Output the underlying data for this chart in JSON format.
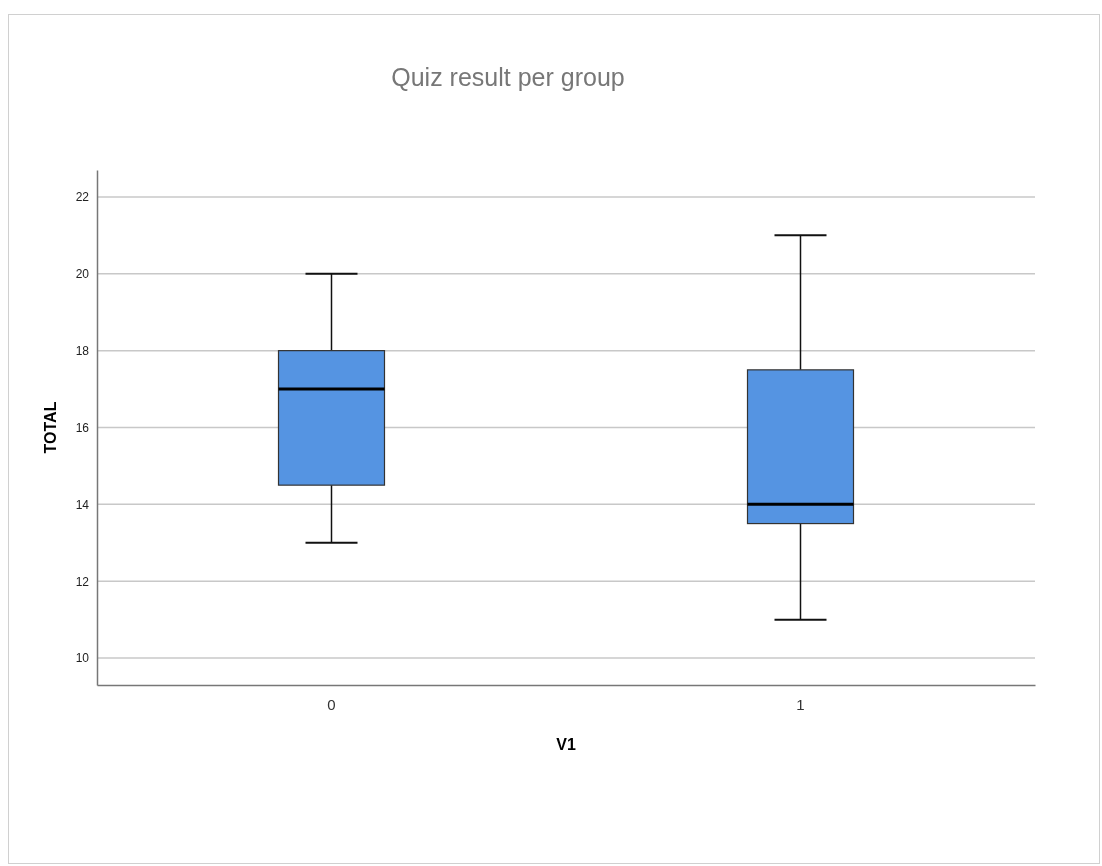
{
  "chart_data": {
    "type": "box",
    "title": "Quiz result per group",
    "xlabel": "V1",
    "ylabel": "TOTAL",
    "categories": [
      "0",
      "1"
    ],
    "color": "#5594e2",
    "boxes": [
      {
        "low": 13,
        "q1": 14.5,
        "median": 17,
        "q3": 18,
        "high": 20
      },
      {
        "low": 11,
        "q1": 13.5,
        "median": 14,
        "q3": 17.5,
        "high": 21
      }
    ],
    "ylim": [
      9.3,
      22.7
    ],
    "yticks": [
      10,
      12,
      14,
      16,
      18,
      20,
      22
    ],
    "grid": "y"
  }
}
